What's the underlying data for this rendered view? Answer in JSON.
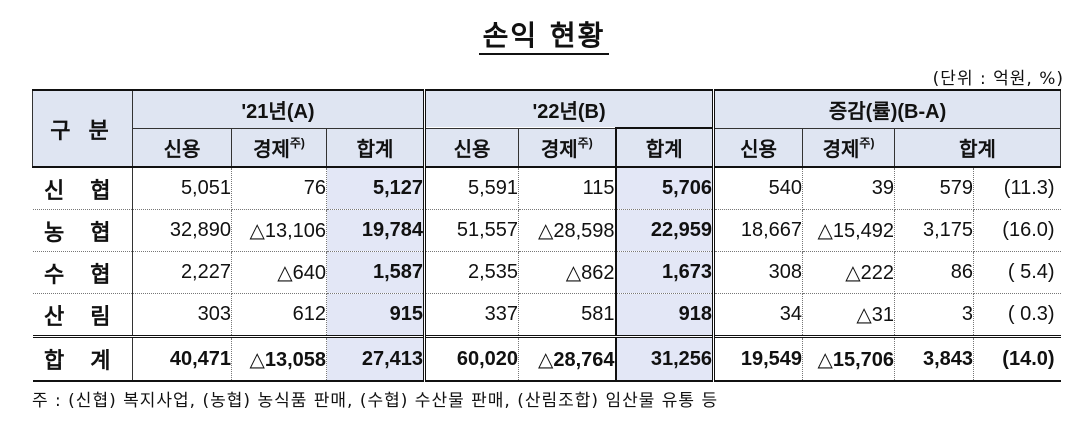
{
  "title": "손익 현황",
  "unit": "(단위 : 억원, %)",
  "header": {
    "gubun": "구 분",
    "group_a": "'21년(A)",
    "group_b": "'22년(B)",
    "group_c": "증감(률)(B-A)",
    "credit": "신용",
    "economy": "경제",
    "economy_sup": "주)",
    "total": "합계"
  },
  "rows": [
    {
      "label": "신 협",
      "a_credit": "5,051",
      "a_econ": "76",
      "a_total": "5,127",
      "b_credit": "5,591",
      "b_econ": "115",
      "b_total": "5,706",
      "c_credit": "540",
      "c_econ": "39",
      "c_total": "579",
      "c_rate": "(11.3)"
    },
    {
      "label": "농 협",
      "a_credit": "32,890",
      "a_econ": "△13,106",
      "a_total": "19,784",
      "b_credit": "51,557",
      "b_econ": "△28,598",
      "b_total": "22,959",
      "c_credit": "18,667",
      "c_econ": "△15,492",
      "c_total": "3,175",
      "c_rate": "(16.0)"
    },
    {
      "label": "수 협",
      "a_credit": "2,227",
      "a_econ": "△640",
      "a_total": "1,587",
      "b_credit": "2,535",
      "b_econ": "△862",
      "b_total": "1,673",
      "c_credit": "308",
      "c_econ": "△222",
      "c_total": "86",
      "c_rate": "( 5.4)"
    },
    {
      "label": "산 림",
      "a_credit": "303",
      "a_econ": "612",
      "a_total": "915",
      "b_credit": "337",
      "b_econ": "581",
      "b_total": "918",
      "c_credit": "34",
      "c_econ": "△31",
      "c_total": "3",
      "c_rate": "( 0.3)"
    },
    {
      "label": "합 계",
      "a_credit": "40,471",
      "a_econ": "△13,058",
      "a_total": "27,413",
      "b_credit": "60,020",
      "b_econ": "△28,764",
      "b_total": "31,256",
      "c_credit": "19,549",
      "c_econ": "△15,706",
      "c_total": "3,843",
      "c_rate": "(14.0)"
    }
  ],
  "note": "주 : (신협) 복지사업, (농협) 농식품 판매, (수협) 수산물 판매, (산림조합) 임산물 유통 등"
}
